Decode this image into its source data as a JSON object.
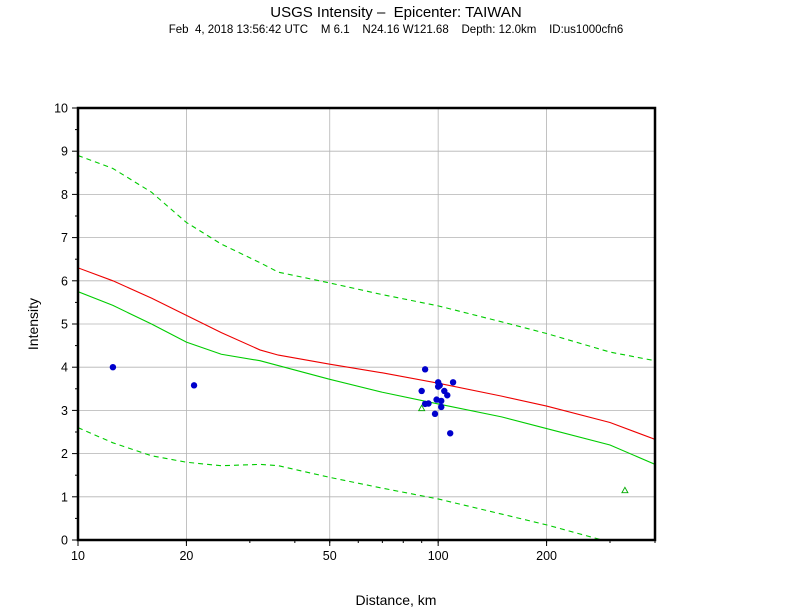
{
  "chart_data": {
    "type": "scatter",
    "title": "USGS Intensity –  Epicenter: TAIWAN",
    "subtitle": "Feb  4, 2018 13:56:42 UTC    M 6.1    N24.16 W121.68    Depth: 12.0km    ID:us1000cfn6",
    "xlabel": "Distance, km",
    "ylabel": "Intensity",
    "xscale": "log",
    "xlim": [
      10,
      400
    ],
    "ylim": [
      0,
      10
    ],
    "x_ticks": [
      10,
      20,
      50,
      100,
      200
    ],
    "y_ticks": [
      0,
      1,
      2,
      3,
      4,
      5,
      6,
      7,
      8,
      9,
      10
    ],
    "grid": true,
    "legend": "none",
    "series": [
      {
        "kind": "line",
        "color": "#ee0000",
        "style": "solid",
        "x": [
          10,
          12.5,
          16,
          20,
          25,
          32,
          36,
          50,
          70,
          100,
          150,
          200,
          300,
          400
        ],
        "y": [
          6.3,
          6.0,
          5.6,
          5.2,
          4.8,
          4.4,
          4.28,
          4.07,
          3.87,
          3.63,
          3.33,
          3.1,
          2.72,
          2.33
        ]
      },
      {
        "kind": "line",
        "color": "#00cc00",
        "style": "solid",
        "x": [
          10,
          12.5,
          16,
          20,
          25,
          32,
          50,
          70,
          100,
          150,
          200,
          300,
          400
        ],
        "y": [
          5.75,
          5.43,
          5.0,
          4.58,
          4.3,
          4.15,
          3.72,
          3.42,
          3.15,
          2.85,
          2.58,
          2.2,
          1.75
        ]
      },
      {
        "kind": "line",
        "color": "#00cc00",
        "style": "dashed",
        "x": [
          10,
          12.5,
          16,
          20,
          25,
          32,
          36,
          50,
          70,
          100,
          150,
          200,
          300,
          400
        ],
        "y": [
          8.9,
          8.6,
          8.05,
          7.35,
          6.85,
          6.42,
          6.2,
          5.95,
          5.68,
          5.42,
          5.05,
          4.78,
          4.35,
          4.15
        ]
      },
      {
        "kind": "line",
        "color": "#00cc00",
        "style": "dashed",
        "x": [
          10,
          12.5,
          16,
          20,
          25,
          32,
          36,
          50,
          70,
          100,
          150,
          200,
          300
        ],
        "y": [
          2.6,
          2.25,
          1.95,
          1.8,
          1.72,
          1.75,
          1.72,
          1.45,
          1.2,
          0.95,
          0.6,
          0.35,
          -0.05
        ]
      },
      {
        "kind": "points",
        "marker": "circle",
        "color": "#0000cc",
        "x": [
          12.5,
          21,
          92,
          92,
          94,
          98,
          99,
          100,
          100,
          101,
          102,
          102,
          104,
          106,
          108,
          110,
          90
        ],
        "y": [
          4.0,
          3.58,
          3.95,
          3.15,
          3.16,
          2.92,
          3.25,
          3.65,
          3.55,
          3.58,
          3.22,
          3.08,
          3.45,
          3.35,
          2.47,
          3.65,
          3.45
        ]
      },
      {
        "kind": "points",
        "marker": "triangle",
        "color": "#00aa00",
        "x": [
          90,
          330
        ],
        "y": [
          3.05,
          1.15
        ]
      }
    ]
  }
}
